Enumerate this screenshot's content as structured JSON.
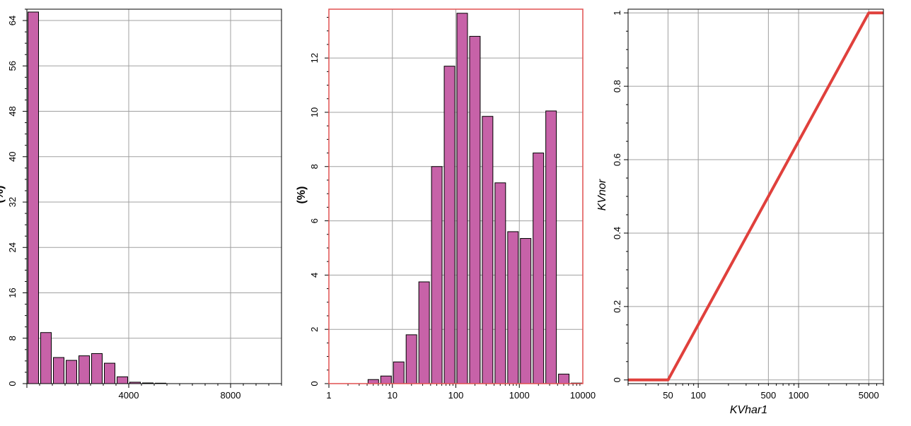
{
  "colors": {
    "bar_fill": "#c762a8",
    "bar_stroke": "#000000",
    "grid": "#a0a0a0",
    "line": "#e0403c",
    "frame_highlight": "#e05050"
  },
  "chart_data": [
    {
      "type": "bar",
      "title": "",
      "xlabel": "",
      "ylabel": "(%)",
      "xscale": "linear",
      "xlim": [
        0,
        10000
      ],
      "ylim": [
        0,
        66
      ],
      "xticks": [
        4000,
        8000
      ],
      "xtick_labels": [
        "4000",
        "8000"
      ],
      "yticks": [
        0,
        8,
        16,
        24,
        32,
        40,
        48,
        56,
        64
      ],
      "ytick_labels": [
        "0",
        "8",
        "16",
        "24",
        "32",
        "40",
        "48",
        "56",
        "64"
      ],
      "grid": true,
      "bin_width": 500,
      "bin_starts": [
        0,
        500,
        1000,
        1500,
        2000,
        2500,
        3000,
        3500,
        4000,
        4500,
        5000
      ],
      "values": [
        65.5,
        9.0,
        4.6,
        4.1,
        4.9,
        5.3,
        3.6,
        1.2,
        0.25,
        0.12,
        0.08
      ]
    },
    {
      "type": "bar",
      "title": "",
      "xlabel": "",
      "ylabel": "(%)",
      "xscale": "log",
      "xlim": [
        1,
        10000
      ],
      "ylim": [
        0,
        13.8
      ],
      "xticks": [
        1,
        10,
        100,
        1000,
        10000
      ],
      "xtick_labels": [
        "1",
        "10",
        "100",
        "1000",
        "10000"
      ],
      "yticks": [
        0,
        2,
        4,
        6,
        8,
        10,
        12
      ],
      "ytick_labels": [
        "0",
        "2",
        "4",
        "6",
        "8",
        "10",
        "12"
      ],
      "grid": true,
      "bin_width_log10": 0.2,
      "bin_starts_log10": [
        0.6,
        0.8,
        1.0,
        1.2,
        1.4,
        1.6,
        1.8,
        2.0,
        2.2,
        2.4,
        2.6,
        2.8,
        3.0,
        3.2,
        3.4,
        3.6,
        3.8
      ],
      "values": [
        0.15,
        0.28,
        0.8,
        1.8,
        3.75,
        8.0,
        11.7,
        13.65,
        12.8,
        9.85,
        7.4,
        5.6,
        5.35,
        8.5,
        10.05,
        0.35,
        0.02
      ]
    },
    {
      "type": "line",
      "title": "",
      "xlabel": "KVhar1",
      "ylabel": "KVnor",
      "xscale": "log",
      "xlim": [
        20,
        7000
      ],
      "ylim": [
        -0.01,
        1.01
      ],
      "xticks": [
        50,
        100,
        500,
        1000,
        5000
      ],
      "xtick_labels": [
        "50",
        "100",
        "500",
        "1000",
        "5000"
      ],
      "yticks": [
        0,
        0.2,
        0.4,
        0.6,
        0.8,
        1
      ],
      "ytick_labels": [
        "0",
        "0.2",
        "0.4",
        "0.6",
        "0.8",
        "1"
      ],
      "grid": true,
      "x": [
        20,
        50,
        5000,
        7000
      ],
      "y": [
        0,
        0,
        1,
        1
      ]
    }
  ]
}
